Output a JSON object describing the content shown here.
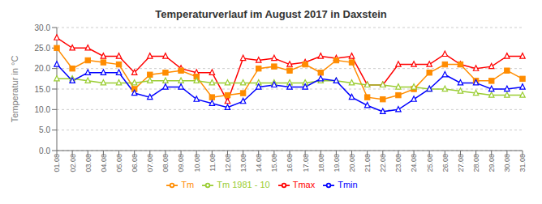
{
  "chart_data": {
    "type": "line",
    "title": "Temperaturverlauf im August 2017 in Daxstein",
    "ylabel": "Temperatur in °C",
    "categories": [
      "01.08",
      "02.08",
      "03.08",
      "04.08",
      "05.08",
      "06.08",
      "07.08",
      "08.08",
      "09.08",
      "10.08",
      "11.08",
      "12.08",
      "13.08",
      "14.08",
      "15.08",
      "16.08",
      "17.08",
      "18.08",
      "19.08",
      "20.08",
      "21.08",
      "22.08",
      "23.08",
      "24.08",
      "25.08",
      "26.08",
      "27.08",
      "28.08",
      "29.08",
      "30.08",
      "31.08"
    ],
    "series": [
      {
        "name": "Tmax",
        "color": "#FF0000",
        "marker": "triangle",
        "values": [
          27.5,
          25.0,
          25.0,
          23.0,
          23.0,
          19.0,
          23.0,
          23.0,
          20.0,
          19.0,
          19.0,
          12.0,
          22.5,
          22.0,
          22.5,
          21.0,
          21.5,
          23.0,
          22.5,
          23.0,
          16.0,
          16.0,
          21.0,
          21.0,
          21.0,
          23.5,
          21.0,
          20.0,
          20.5,
          23.0,
          23.0
        ]
      },
      {
        "name": "Tm",
        "color": "#FF8C00",
        "marker": "square",
        "values": [
          25.0,
          20.0,
          22.0,
          21.5,
          21.0,
          15.0,
          18.5,
          19.0,
          19.5,
          18.0,
          13.0,
          13.5,
          14.0,
          20.0,
          20.5,
          19.5,
          21.0,
          19.0,
          22.0,
          21.5,
          13.0,
          12.5,
          13.5,
          15.0,
          19.0,
          21.0,
          21.0,
          17.0,
          17.0,
          19.5,
          17.5
        ]
      },
      {
        "name": "Tm 1981 - 10",
        "color": "#9ACD32",
        "marker": "triangle",
        "values": [
          17.5,
          17.5,
          17.0,
          16.5,
          16.5,
          16.5,
          17.0,
          17.0,
          17.0,
          17.0,
          16.5,
          16.5,
          16.5,
          16.5,
          16.5,
          16.5,
          16.5,
          17.0,
          17.0,
          16.5,
          16.0,
          16.0,
          15.5,
          15.5,
          15.0,
          15.0,
          14.5,
          14.0,
          13.5,
          13.5,
          13.5
        ]
      },
      {
        "name": "Tmin",
        "color": "#0000FF",
        "marker": "triangle",
        "values": [
          21.0,
          17.0,
          19.0,
          19.0,
          19.0,
          14.0,
          13.0,
          15.5,
          15.5,
          12.5,
          11.5,
          10.5,
          12.0,
          15.5,
          16.0,
          15.5,
          15.5,
          17.5,
          17.0,
          13.0,
          11.0,
          9.5,
          10.0,
          12.5,
          15.0,
          18.5,
          16.5,
          16.5,
          15.0,
          15.0,
          15.5
        ]
      }
    ],
    "ylim": [
      0.0,
      30.0
    ],
    "yticks": [
      {
        "value": 0,
        "label": "0.0"
      },
      {
        "value": 5,
        "label": "5.0"
      },
      {
        "value": 10,
        "label": "10.0"
      },
      {
        "value": 15,
        "label": "15.0"
      },
      {
        "value": 20,
        "label": "20.0"
      },
      {
        "value": 25,
        "label": "25.0"
      },
      {
        "value": 30,
        "label": "30.0"
      }
    ],
    "grid": true,
    "legend": "bottom"
  }
}
